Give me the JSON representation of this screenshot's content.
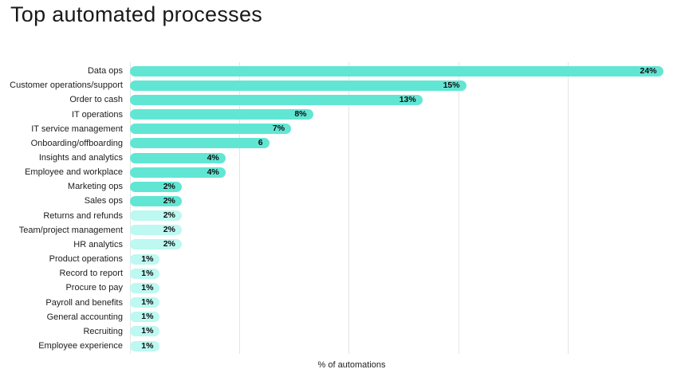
{
  "chart_data": {
    "type": "bar",
    "orientation": "horizontal",
    "title": "Top automated processes",
    "xlabel": "% of automations",
    "ylabel": "",
    "xlim": [
      0,
      25
    ],
    "grid": {
      "show": true,
      "interval": 5,
      "color": "#e5e5e5"
    },
    "legend": "none",
    "bar_colors": {
      "primary": "#62e6d4",
      "secondary": "#bdf8f1"
    },
    "categories": [
      "Data ops",
      "Customer operations/support",
      "Order to cash",
      "IT operations",
      "IT service management",
      "Onboarding/offboarding",
      "Insights and analytics",
      "Employee and workplace",
      "Marketing ops",
      "Sales ops",
      "Returns and refunds",
      "Team/project management",
      "HR analytics",
      "Product operations",
      "Record to report",
      "Procure to pay",
      "Payroll and benefits",
      "General accounting",
      "Recruiting",
      "Employee experience"
    ],
    "values": [
      24,
      15,
      13,
      8,
      7,
      6,
      4,
      4,
      2,
      2,
      2,
      2,
      2,
      1,
      1,
      1,
      1,
      1,
      1,
      1
    ],
    "value_labels": [
      "24%",
      "15%",
      "13%",
      "8%",
      "7%",
      "6",
      "4%",
      "4%",
      "2%",
      "2%",
      "2%",
      "2%",
      "2%",
      "1%",
      "1%",
      "1%",
      "1%",
      "1%",
      "1%",
      "1%"
    ],
    "color_keys": [
      "primary",
      "primary",
      "primary",
      "primary",
      "primary",
      "primary",
      "primary",
      "primary",
      "primary",
      "primary",
      "secondary",
      "secondary",
      "secondary",
      "secondary",
      "secondary",
      "secondary",
      "secondary",
      "secondary",
      "secondary",
      "secondary"
    ]
  }
}
